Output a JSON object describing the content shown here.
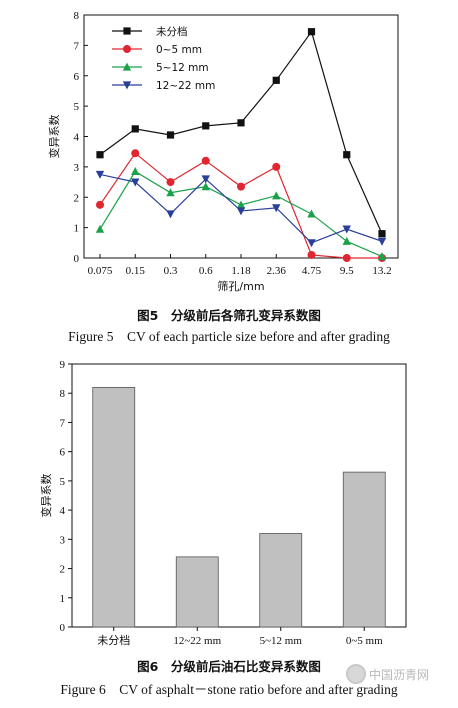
{
  "figure5": {
    "caption_cn": "图5　分级前后各筛孔变异系数图",
    "caption_en": "Figure 5　CV of each particle size before and after grading"
  },
  "figure6": {
    "caption_cn": "图6　分级前后油石比变异系数图",
    "caption_en": "Figure 6　CV of asphalt－stone ratio before and after grading"
  },
  "watermark": {
    "text": "中国沥青网"
  },
  "chart_data": [
    {
      "type": "line",
      "xlabel": "筛孔/mm",
      "ylabel": "变异系数",
      "categories": [
        "0.075",
        "0.15",
        "0.3",
        "0.6",
        "1.18",
        "2.36",
        "4.75",
        "9.5",
        "13.2"
      ],
      "ylim": [
        0,
        8
      ],
      "yticks": [
        0,
        1,
        2,
        3,
        4,
        5,
        6,
        7,
        8
      ],
      "legend_position": "top-left",
      "series": [
        {
          "name": "未分档",
          "color": "#111111",
          "marker": "square",
          "values": [
            3.4,
            4.25,
            4.05,
            4.35,
            4.45,
            5.85,
            7.45,
            3.4,
            0.8
          ]
        },
        {
          "name": "0~5 mm",
          "color": "#e0262f",
          "marker": "circle",
          "values": [
            1.75,
            3.45,
            2.5,
            3.2,
            2.35,
            3.0,
            0.1,
            0.0,
            0.0
          ]
        },
        {
          "name": "5~12 mm",
          "color": "#1aa24a",
          "marker": "triangle-up",
          "values": [
            0.95,
            2.85,
            2.15,
            2.35,
            1.75,
            2.05,
            1.45,
            0.55,
            0.05
          ]
        },
        {
          "name": "12~22 mm",
          "color": "#2a3f9a",
          "marker": "triangle-down",
          "values": [
            2.75,
            2.5,
            1.45,
            2.6,
            1.55,
            1.65,
            0.5,
            0.95,
            0.55
          ]
        }
      ]
    },
    {
      "type": "bar",
      "ylabel": "变异系数",
      "categories": [
        "未分档",
        "12~22 mm",
        "5~12 mm",
        "0~5 mm"
      ],
      "values": [
        8.2,
        2.4,
        3.2,
        5.3
      ],
      "ylim": [
        0,
        9
      ],
      "yticks": [
        0,
        1,
        2,
        3,
        4,
        5,
        6,
        7,
        8,
        9
      ],
      "bar_color": "#c0c0c0",
      "grid": false
    }
  ]
}
